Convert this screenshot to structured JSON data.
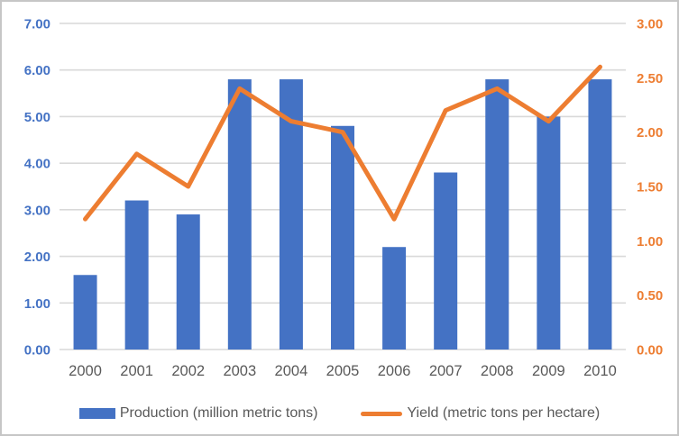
{
  "chart_data": {
    "type": "bar",
    "subtype": "combo-bar-line",
    "title": "",
    "categories": [
      "2000",
      "2001",
      "2002",
      "2003",
      "2004",
      "2005",
      "2006",
      "2007",
      "2008",
      "2009",
      "2010"
    ],
    "series": [
      {
        "name": "Production (million metric tons)",
        "type": "bar",
        "axis": "left",
        "color": "#4472C4",
        "values": [
          1.6,
          3.2,
          2.9,
          5.8,
          5.8,
          4.8,
          2.2,
          3.8,
          5.8,
          5.0,
          5.8
        ]
      },
      {
        "name": "Yield (metric tons per hectare)",
        "type": "line",
        "axis": "right",
        "color": "#ED7D31",
        "values": [
          1.2,
          1.8,
          1.5,
          2.4,
          2.1,
          2.0,
          1.2,
          2.2,
          2.4,
          2.1,
          2.6
        ]
      }
    ],
    "left_axis": {
      "min": 0,
      "max": 7,
      "step": 1,
      "tick_labels": [
        "0.00",
        "1.00",
        "2.00",
        "3.00",
        "4.00",
        "5.00",
        "6.00",
        "7.00"
      ],
      "text_color": "#4472C4"
    },
    "right_axis": {
      "min": 0,
      "max": 3,
      "step": 0.5,
      "tick_labels": [
        "0.00",
        "0.50",
        "1.00",
        "1.50",
        "2.00",
        "2.50",
        "3.00"
      ],
      "text_color": "#ED7D31"
    },
    "x_axis": {
      "text_color": "#595959"
    },
    "grid": true,
    "gridline_color": "#D9D9D9",
    "legend_position": "bottom",
    "xlabel": "",
    "ylabel": ""
  },
  "legend": {
    "items": [
      {
        "label": "Production (million metric tons)",
        "swatch": "bar",
        "color": "#4472C4"
      },
      {
        "label": "Yield (metric tons per hectare)",
        "swatch": "line",
        "color": "#ED7D31"
      }
    ]
  },
  "colors": {
    "background": "#FFFFFF",
    "frame_border": "#C6C6C6",
    "bar": "#4472C4",
    "line": "#ED7D31",
    "gridline": "#D9D9D9",
    "gray_text": "#595959"
  }
}
